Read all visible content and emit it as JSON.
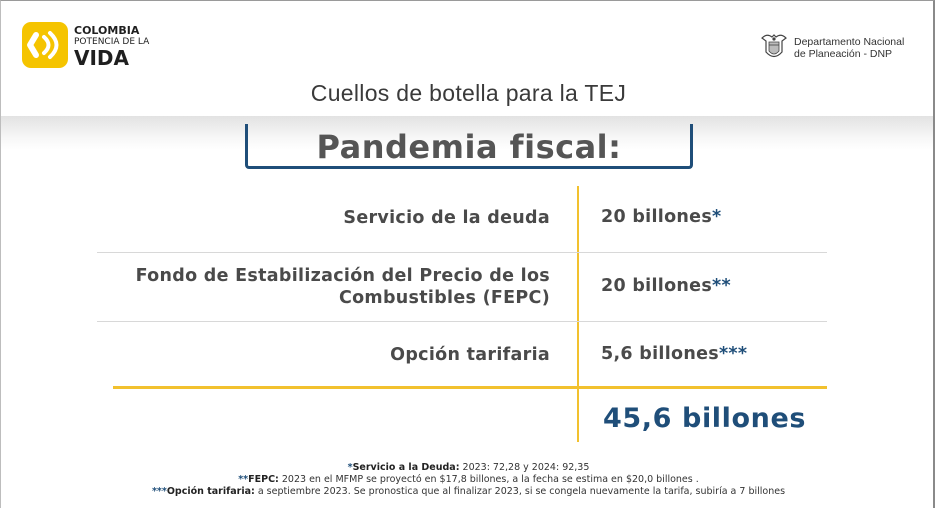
{
  "header": {
    "logo_left": {
      "line1": "COLOMBIA",
      "line2": "POTENCIA DE LA",
      "line3": "VIDA"
    },
    "logo_right": {
      "line1": "Departamento Nacional",
      "line2": "de Planeación - DNP"
    }
  },
  "slide_title": "Cuellos de botella para la TEJ",
  "section_title": "Pandemia fiscal:",
  "rows": [
    {
      "label": "Servicio de la deuda",
      "value": "20 billones",
      "marker": "*"
    },
    {
      "label": "Fondo de Estabilización del Precio de los Combustibles (FEPC)",
      "value": "20 billones",
      "marker": "**"
    },
    {
      "label": "Opción tarifaria",
      "value": "5,6 billones",
      "marker": "***"
    }
  ],
  "total": "45,6 billones",
  "footnotes": [
    {
      "marker": "*",
      "key": "Servicio a la Deuda:",
      "text": " 2023: 72,28  y 2024: 92,35"
    },
    {
      "marker": "**",
      "key": "FEPC:",
      "text": " 2023 en el MFMP se proyectó en $17,8 billones, a la fecha se estima en $20,0 billones ."
    },
    {
      "marker": "***",
      "key": "Opción tarifaria:",
      "text": " a septiembre 2023. Se pronostica que al finalizar 2023, si se congela nuevamente la tarifa, subiría a 7 billones"
    }
  ],
  "colors": {
    "accent_blue": "#1f4e79",
    "accent_yellow": "#f2c12e",
    "logo_yellow": "#f5c400",
    "text_gray": "#4a4a4a"
  },
  "icons": [
    "colombia-potencia-logo-icon",
    "colombia-crest-icon"
  ]
}
